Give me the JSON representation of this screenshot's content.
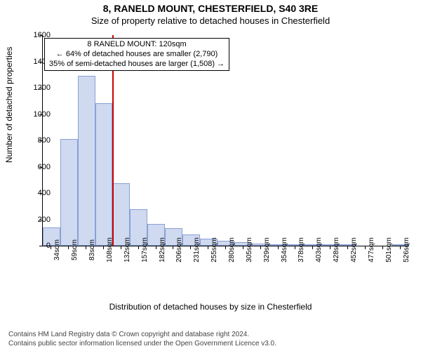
{
  "title_main": "8, RANELD MOUNT, CHESTERFIELD, S40 3RE",
  "title_sub": "Size of property relative to detached houses in Chesterfield",
  "y_axis_label": "Number of detached properties",
  "x_axis_label": "Distribution of detached houses by size in Chesterfield",
  "chart": {
    "type": "histogram",
    "bar_fill": "#cfd9ef",
    "bar_stroke": "#8aa0d6",
    "bar_stroke_width": 1,
    "background_color": "#ffffff",
    "axis_color": "#000000",
    "ylim": [
      0,
      1600
    ],
    "ytick_step": 200,
    "categories": [
      "34sqm",
      "59sqm",
      "83sqm",
      "108sqm",
      "132sqm",
      "157sqm",
      "182sqm",
      "206sqm",
      "231sqm",
      "255sqm",
      "280sqm",
      "305sqm",
      "329sqm",
      "354sqm",
      "378sqm",
      "403sqm",
      "428sqm",
      "452sqm",
      "477sqm",
      "501sqm",
      "526sqm"
    ],
    "values": [
      140,
      810,
      1290,
      1085,
      475,
      280,
      165,
      135,
      85,
      55,
      35,
      25,
      15,
      10,
      10,
      5,
      10,
      5,
      0,
      0,
      5
    ],
    "marker_line": {
      "color": "#cc0000",
      "width": 2,
      "position_sqm": 120
    },
    "annotation": {
      "lines": [
        "8 RANELD MOUNT: 120sqm",
        "← 64% of detached houses are smaller (2,790)",
        "35% of semi-detached houses are larger (1,508) →"
      ],
      "border_color": "#000000",
      "bg_color": "#ffffff",
      "fontsize": 11
    }
  },
  "attribution": {
    "line1": "Contains HM Land Registry data © Crown copyright and database right 2024.",
    "line2": "Contains public sector information licensed under the Open Government Licence v3.0."
  }
}
